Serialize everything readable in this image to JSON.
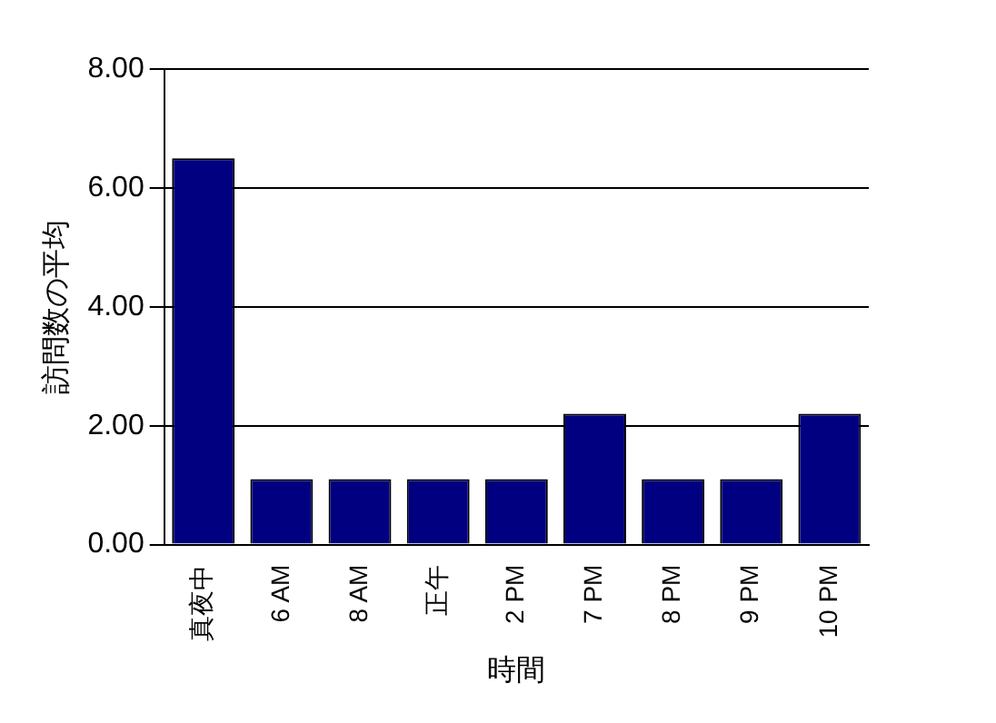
{
  "chart_data": {
    "type": "bar",
    "xlabel": "時間",
    "ylabel": "訪問数の平均",
    "categories": [
      "真夜中",
      "6 AM",
      "8 AM",
      "正午",
      "2 PM",
      "7 PM",
      "8 PM",
      "9 PM",
      "10 PM"
    ],
    "values": [
      6.5,
      1.1,
      1.1,
      1.1,
      1.1,
      2.2,
      1.1,
      1.1,
      2.2
    ],
    "color": "#000080",
    "ylim": [
      0,
      8
    ],
    "yticks": [
      {
        "value": 0,
        "label": "0.00"
      },
      {
        "value": 2,
        "label": "2.00"
      },
      {
        "value": 4,
        "label": "4.00"
      },
      {
        "value": 6,
        "label": "6.00"
      },
      {
        "value": 8,
        "label": "8.00"
      }
    ],
    "grid": "y",
    "legend": false
  }
}
